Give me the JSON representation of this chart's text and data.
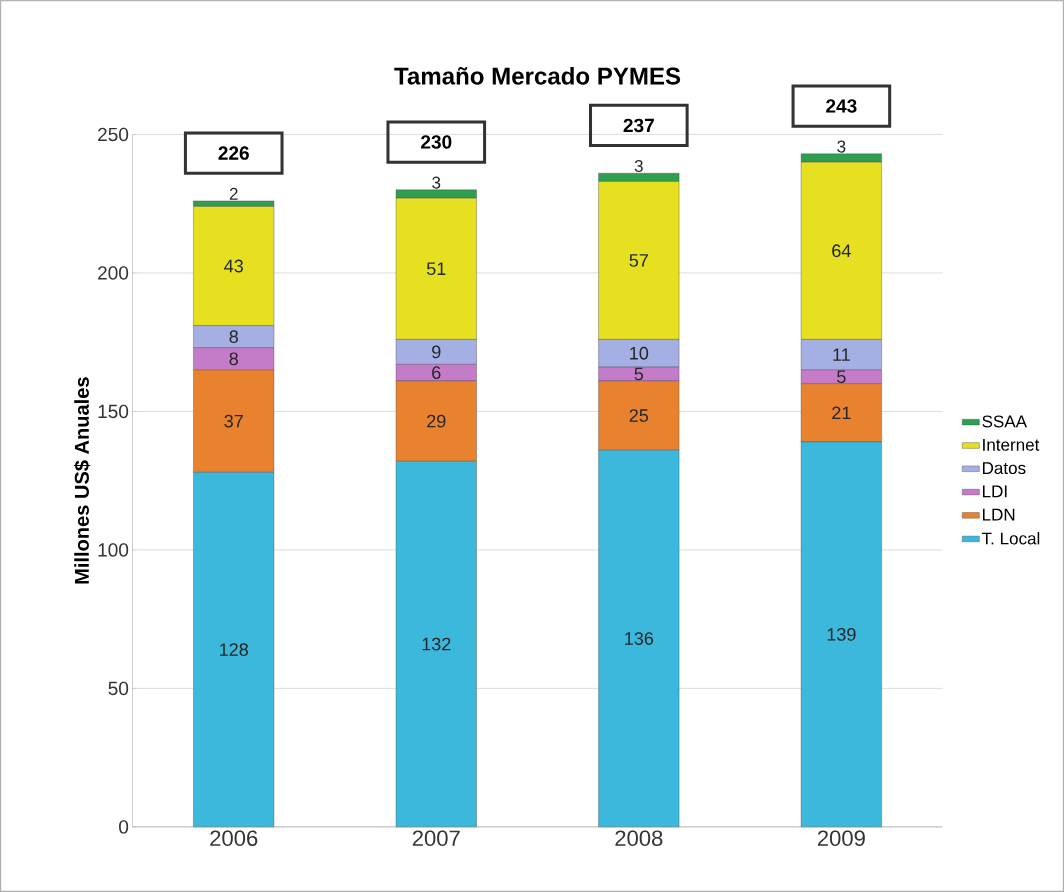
{
  "chart_data": {
    "type": "bar",
    "title": "Tamaño Mercado PYMES",
    "ylabel": "Millones US$ Anuales",
    "categories": [
      "2006",
      "2007",
      "2008",
      "2009"
    ],
    "stacked": true,
    "series": [
      {
        "name": "T. Local",
        "color": "#3bb8dc",
        "values": [
          128,
          132,
          136,
          139
        ]
      },
      {
        "name": "LDN",
        "color": "#e8822e",
        "values": [
          37,
          29,
          25,
          21
        ]
      },
      {
        "name": "LDI",
        "color": "#c47cc8",
        "values": [
          8,
          6,
          5,
          5
        ]
      },
      {
        "name": "Datos",
        "color": "#a4b0e4",
        "values": [
          8,
          9,
          10,
          11
        ]
      },
      {
        "name": "Internet",
        "color": "#e6e020",
        "values": [
          43,
          51,
          57,
          64
        ]
      },
      {
        "name": "SSAA",
        "color": "#2f9e50",
        "values": [
          2,
          3,
          3,
          3
        ]
      }
    ],
    "totals": [
      "226",
      "230",
      "237",
      "243"
    ],
    "data_labels": true,
    "ylim": [
      0,
      250
    ],
    "yticks": [
      0,
      50,
      100,
      150,
      200,
      250
    ],
    "grid": "y",
    "legend": "right"
  }
}
